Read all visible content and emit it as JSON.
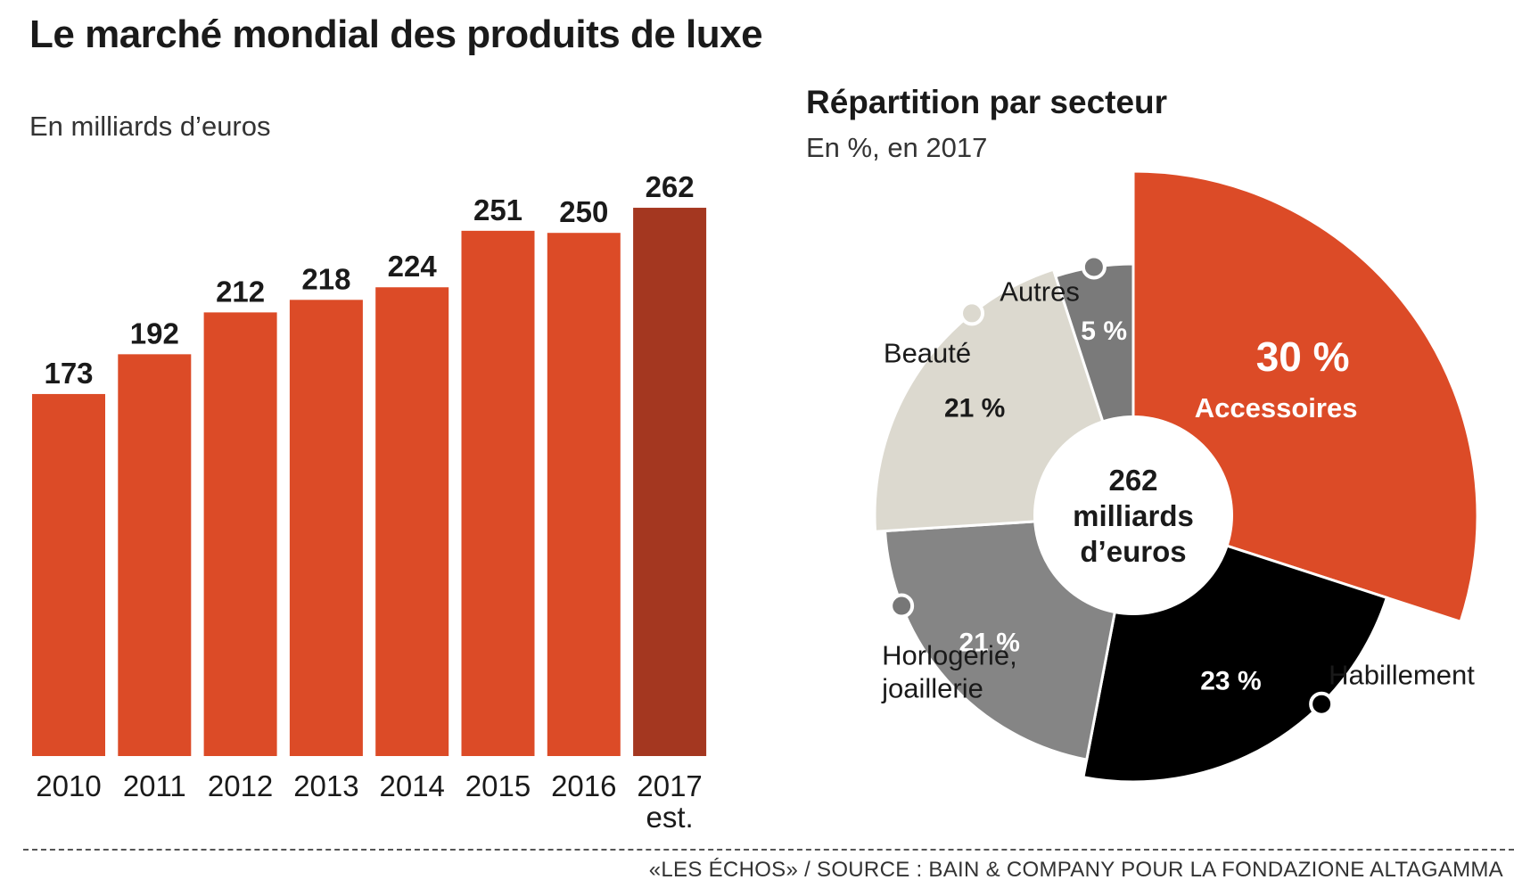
{
  "title": "Le marché mondial des produits de luxe",
  "source": "«LES ÉCHOS» / SOURCE : BAIN & COMPANY POUR LA FONDAZIONE ALTAGAMMA",
  "colors": {
    "bar": "#dc4b27",
    "bar_highlight": "#a43720",
    "accessoires": "#dc4b27",
    "habillement": "#000000",
    "horlogerie": "#858585",
    "beaute": "#dcd9cf",
    "autres": "#7a7a7a"
  },
  "chart_data": [
    {
      "type": "bar",
      "subtitle": "En milliards d’euros",
      "categories": [
        "2010",
        "2011",
        "2012",
        "2013",
        "2014",
        "2015",
        "2016",
        "2017"
      ],
      "category_notes": [
        "",
        "",
        "",
        "",
        "",
        "",
        "",
        "est."
      ],
      "values": [
        173,
        192,
        212,
        218,
        224,
        251,
        250,
        262
      ],
      "value_labels": [
        "173",
        "192",
        "212",
        "218",
        "224",
        "251",
        "250",
        "262"
      ],
      "highlight_index": 7,
      "ylim": [
        0,
        290
      ]
    },
    {
      "type": "pie",
      "title": "Répartition par secteur",
      "subtitle": "En %, en 2017",
      "center_text": [
        "262",
        "milliards",
        "d’euros"
      ],
      "slices": [
        {
          "name": "Accessoires",
          "value": 30,
          "label": "30 %",
          "color": "#dc4b27"
        },
        {
          "name": "Habillement",
          "value": 23,
          "label": "23 %",
          "color": "#000000"
        },
        {
          "name": "Horlogerie, joaillerie",
          "value": 21,
          "label": "21 %",
          "color": "#858585"
        },
        {
          "name": "Beauté",
          "value": 21,
          "label": "21 %",
          "color": "#dcd9cf"
        },
        {
          "name": "Autres",
          "value": 5,
          "label": "5 %",
          "color": "#7a7a7a"
        }
      ],
      "external_labels": {
        "habillement": "Habillement",
        "horlogerie_line1": "Horlogerie,",
        "horlogerie_line2": "joaillerie",
        "beaute": "Beauté",
        "autres": "Autres"
      }
    }
  ]
}
